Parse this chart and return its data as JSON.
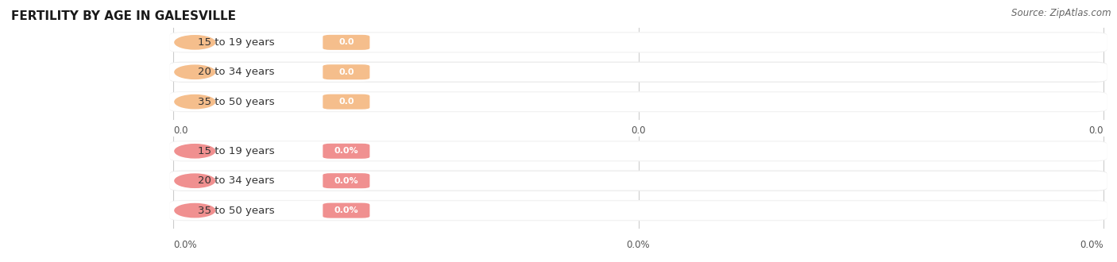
{
  "title": "FERTILITY BY AGE IN GALESVILLE",
  "source": "Source: ZipAtlas.com",
  "top_categories": [
    "15 to 19 years",
    "20 to 34 years",
    "35 to 50 years"
  ],
  "bottom_categories": [
    "15 to 19 years",
    "20 to 34 years",
    "35 to 50 years"
  ],
  "top_labels": [
    "0.0",
    "0.0",
    "0.0"
  ],
  "bottom_labels": [
    "0.0%",
    "0.0%",
    "0.0%"
  ],
  "top_bar_color": "#F5BE8C",
  "bottom_bar_color": "#F09090",
  "bar_bg_color": "#EAEAEA",
  "bar_inner_color": "#FFFFFF",
  "fig_bg_color": "#FFFFFF",
  "row_bg_even": "#F0F0F0",
  "row_bg_odd": "#EBEBEB",
  "x_tick_labels_top": [
    "0.0",
    "0.0",
    "0.0"
  ],
  "x_tick_labels_bottom": [
    "0.0%",
    "0.0%",
    "0.0%"
  ],
  "title_fontsize": 11,
  "cat_fontsize": 9.5,
  "tick_fontsize": 8.5,
  "source_fontsize": 8.5,
  "val_fontsize": 8
}
